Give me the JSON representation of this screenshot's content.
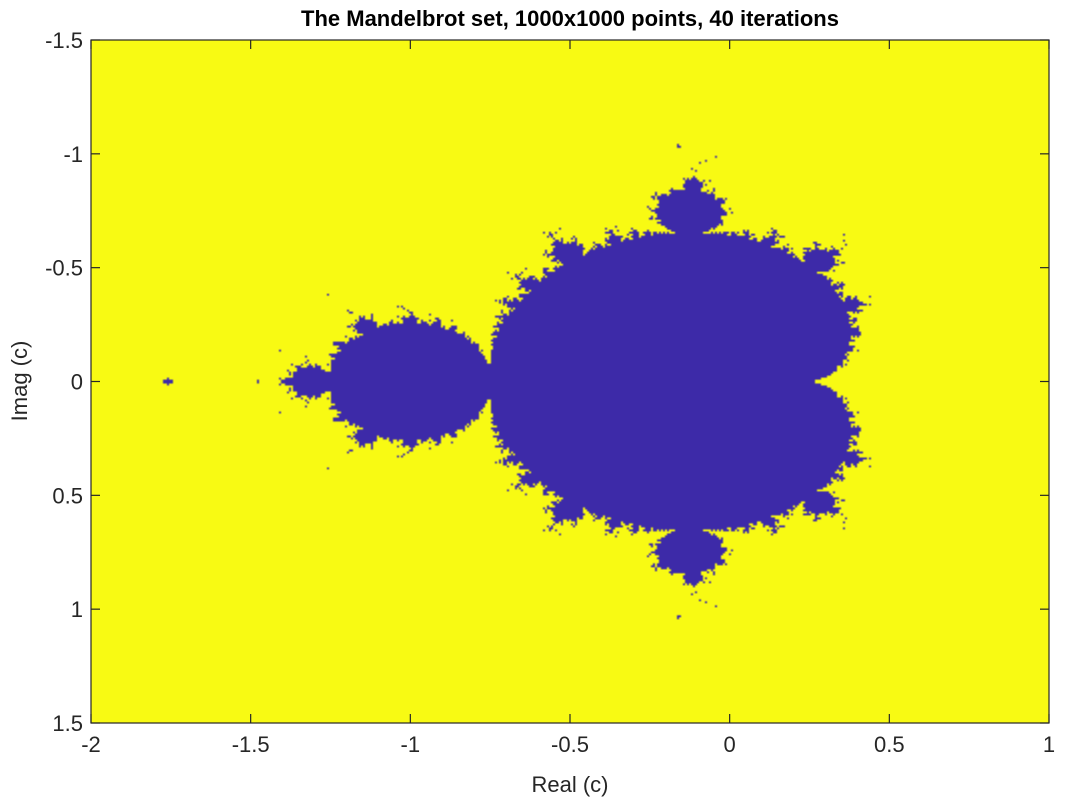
{
  "chart_data": {
    "type": "heatmap",
    "title": "The Mandelbrot set, 1000x1000 points, 40 iterations",
    "xlabel": "Real (c)",
    "ylabel": "Imag (c)",
    "xlim": [
      -2,
      1
    ],
    "ylim": [
      -1.5,
      1.5
    ],
    "y_direction": "reversed",
    "x_ticks": [
      -2,
      -1.5,
      -1,
      -0.5,
      0,
      0.5,
      1
    ],
    "x_tick_labels": [
      "-2",
      "-1.5",
      "-1",
      "-0.5",
      "0",
      "0.5",
      "1"
    ],
    "y_ticks": [
      -1.5,
      -1,
      -0.5,
      0,
      0.5,
      1,
      1.5
    ],
    "y_tick_labels": [
      "-1.5",
      "-1",
      "-0.5",
      "0",
      "0.5",
      "1",
      "1.5"
    ],
    "grid": false,
    "resolution": [
      1000,
      1000
    ],
    "max_iterations": 40,
    "colors": {
      "inside": "#3d2aa8",
      "outside": "#f8fa13",
      "axis": "#262626"
    }
  }
}
